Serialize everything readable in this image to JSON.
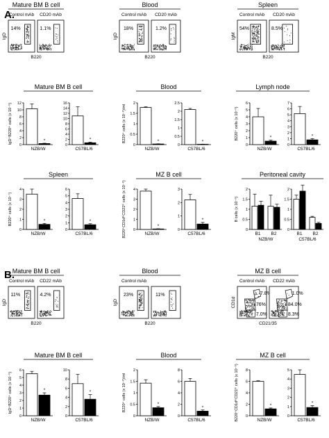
{
  "panel_labels": [
    "A.",
    "B."
  ],
  "colors": {
    "control": "#ffffff",
    "treated": "#000000"
  },
  "flow_A": [
    {
      "title": "Mature BM B cell",
      "ylabel": "IgD",
      "xlabel": "B220",
      "plots": [
        {
          "label": "Control mAb",
          "percent": "14%"
        },
        {
          "label": "CD20 mAb",
          "percent": "1.1%"
        }
      ]
    },
    {
      "title": "Blood",
      "ylabel": "IgD",
      "xlabel": "B220",
      "plots": [
        {
          "label": "Control mAb",
          "percent": "18%"
        },
        {
          "label": "CD20 mAb",
          "percent": "1.2%"
        }
      ]
    },
    {
      "title": "Spleen",
      "ylabel": "IgM",
      "xlabel": "B220",
      "plots": [
        {
          "label": "Control mAb",
          "percent": "54%"
        },
        {
          "label": "CD20 mAb",
          "percent": "8.5%"
        }
      ]
    }
  ],
  "flow_B": [
    {
      "title": "Mature BM B cell",
      "ylabel": "IgD",
      "xlabel": "B220",
      "plots": [
        {
          "label": "Control mAb",
          "percent": "11%"
        },
        {
          "label": "CD22 mAb",
          "percent": "4.2%"
        }
      ]
    },
    {
      "title": "Blood",
      "ylabel": "IgD",
      "xlabel": "B220",
      "plots": [
        {
          "label": "Control mAb",
          "percent": "23%"
        },
        {
          "label": "",
          "percent": "11%"
        }
      ]
    },
    {
      "title": "MZ B cell",
      "ylabel": "CD1d",
      "xlabel": "CD21/35",
      "plots": [
        {
          "label": "Control mAb",
          "gates": [
            "7.8%",
            "76%",
            "7.0%"
          ]
        },
        {
          "label": "CD22 mAb",
          "gates": [
            "1.0%",
            "84.0%",
            "8.3%"
          ]
        }
      ]
    }
  ],
  "chart_data": [
    {
      "type": "bar",
      "title": "Mature BM B cell",
      "ylabel": "IgD⁺B220⁺ cells (x 10⁻⁵)",
      "categories": [
        "NZB/W"
      ],
      "ylim": [
        0,
        12
      ],
      "yticks": [
        0,
        2,
        4,
        6,
        8,
        10,
        12
      ],
      "series": [
        {
          "values": [
            10.3
          ],
          "errors": [
            1.4
          ]
        },
        {
          "values": [
            0.3
          ],
          "errors": [
            0.1
          ]
        }
      ],
      "sig": [
        "*"
      ]
    },
    {
      "type": "bar",
      "title": "",
      "ylabel": "",
      "categories": [
        "C57BL/6"
      ],
      "ylim": [
        0,
        16
      ],
      "yticks": [
        0,
        2,
        4,
        6,
        8,
        10,
        12,
        14,
        16
      ],
      "series": [
        {
          "values": [
            11
          ],
          "errors": [
            3.5
          ]
        },
        {
          "values": [
            0.7
          ],
          "errors": [
            0.2
          ]
        }
      ],
      "sig": [
        "*"
      ]
    },
    {
      "type": "bar",
      "title": "Blood",
      "ylabel": "B220⁺ cells (x 10⁻⁶)/ml",
      "categories": [
        "NZB/W"
      ],
      "ylim": [
        0,
        2.0
      ],
      "yticks": [
        0,
        0.5,
        1.0,
        1.5,
        2.0
      ],
      "series": [
        {
          "values": [
            1.78
          ],
          "errors": [
            0.03
          ]
        },
        {
          "values": [
            0.03
          ],
          "errors": [
            0.01
          ]
        }
      ],
      "sig": [
        "*"
      ]
    },
    {
      "type": "bar",
      "title": "",
      "ylabel": "",
      "categories": [
        "C57BL/6"
      ],
      "ylim": [
        0,
        2.5
      ],
      "yticks": [
        0,
        0.5,
        1.0,
        1.5,
        2.0,
        2.5
      ],
      "series": [
        {
          "values": [
            2.1
          ],
          "errors": [
            0.07
          ]
        },
        {
          "values": [
            0.02
          ],
          "errors": [
            0.01
          ]
        }
      ],
      "sig": [
        "*"
      ]
    },
    {
      "type": "bar",
      "title": "Lymph node",
      "ylabel": "B220⁺ cells (x 10⁻⁶)",
      "categories": [
        "NZB/W"
      ],
      "ylim": [
        0,
        6
      ],
      "yticks": [
        0,
        1,
        2,
        3,
        4,
        5,
        6
      ],
      "series": [
        {
          "values": [
            4.0
          ],
          "errors": [
            1.2
          ]
        },
        {
          "values": [
            0.5
          ],
          "errors": [
            0.15
          ]
        }
      ],
      "sig": [
        "*"
      ]
    },
    {
      "type": "bar",
      "title": "",
      "ylabel": "",
      "categories": [
        "C57BL/6"
      ],
      "ylim": [
        0,
        7
      ],
      "yticks": [
        0,
        1,
        2,
        3,
        4,
        5,
        6,
        7
      ],
      "series": [
        {
          "values": [
            5.2
          ],
          "errors": [
            1.2
          ]
        },
        {
          "values": [
            0.8
          ],
          "errors": [
            0.2
          ]
        }
      ],
      "sig": [
        "*"
      ]
    },
    {
      "type": "bar",
      "title": "Spleen",
      "ylabel": "B220⁺ cells (x 10⁻⁷)",
      "categories": [
        "NZB/W"
      ],
      "ylim": [
        0,
        4
      ],
      "yticks": [
        0,
        1,
        2,
        3,
        4
      ],
      "series": [
        {
          "values": [
            3.5
          ],
          "errors": [
            0.5
          ]
        },
        {
          "values": [
            0.5
          ],
          "errors": [
            0.1
          ]
        }
      ],
      "sig": [
        "*"
      ]
    },
    {
      "type": "bar",
      "title": "",
      "ylabel": "",
      "categories": [
        "C57BL/6"
      ],
      "ylim": [
        0,
        6
      ],
      "yticks": [
        0,
        1,
        2,
        3,
        4,
        5,
        6
      ],
      "series": [
        {
          "values": [
            4.6
          ],
          "errors": [
            0.7
          ]
        },
        {
          "values": [
            0.7
          ],
          "errors": [
            0.15
          ]
        }
      ],
      "sig": [
        "*"
      ]
    },
    {
      "type": "bar",
      "title": "MZ B cell",
      "ylabel": "B220⁺CD1dʰⁱCD21ʰⁱ cells (x 10⁻⁶)",
      "categories": [
        "NZB/W"
      ],
      "ylim": [
        0,
        4
      ],
      "yticks": [
        0,
        1,
        2,
        3,
        4
      ],
      "series": [
        {
          "values": [
            3.8
          ],
          "errors": [
            0.2
          ]
        },
        {
          "values": [
            0.05
          ],
          "errors": [
            0.02
          ]
        }
      ],
      "sig": [
        "*"
      ]
    },
    {
      "type": "bar",
      "title": "",
      "ylabel": "",
      "categories": [
        "C57BL/6"
      ],
      "ylim": [
        0,
        3
      ],
      "yticks": [
        0,
        1,
        2,
        3
      ],
      "series": [
        {
          "values": [
            2.2
          ],
          "errors": [
            0.4
          ]
        },
        {
          "values": [
            0.4
          ],
          "errors": [
            0.12
          ]
        }
      ],
      "sig": [
        "*"
      ]
    },
    {
      "type": "bar",
      "title": "Peritoneal cavity",
      "ylabel": "B cells (x 10⁻⁶)",
      "categories": [
        "B1",
        "B2"
      ],
      "group": "NZB/W",
      "ylim": [
        0,
        2.0
      ],
      "yticks": [
        0,
        0.5,
        1.0,
        1.5,
        2.0
      ],
      "series": [
        {
          "values": [
            1.15,
            1.15
          ],
          "errors": [
            0.6,
            0.55
          ]
        },
        {
          "values": [
            1.2,
            1.1
          ],
          "errors": [
            0.2,
            0.15
          ]
        }
      ],
      "sig": []
    },
    {
      "type": "bar",
      "title": "",
      "ylabel": "",
      "categories": [
        "B1",
        "B2"
      ],
      "group": "C57BL/6",
      "ylim": [
        0,
        2.0
      ],
      "yticks": [
        0,
        0.5,
        1.0,
        1.5,
        2.0
      ],
      "series": [
        {
          "values": [
            1.5,
            0.6
          ],
          "errors": [
            0.2,
            0.05
          ]
        },
        {
          "values": [
            1.9,
            0.3
          ],
          "errors": [
            0.3,
            0.05
          ]
        }
      ],
      "sig": []
    },
    {
      "type": "bar",
      "title": "Mature BM B cell",
      "ylabel": "IgD⁺B220⁺ cells (x 10⁻⁵)",
      "categories": [
        "NZB/W"
      ],
      "ylim": [
        0,
        6
      ],
      "yticks": [
        0,
        1,
        2,
        3,
        4,
        5,
        6
      ],
      "series": [
        {
          "values": [
            5.5
          ],
          "errors": [
            0.3
          ]
        },
        {
          "values": [
            2.7
          ],
          "errors": [
            0.3
          ]
        }
      ],
      "sig": [
        "*"
      ]
    },
    {
      "type": "bar",
      "title": "",
      "ylabel": "",
      "categories": [
        "C57BL/6"
      ],
      "ylim": [
        0,
        10
      ],
      "yticks": [
        0,
        2,
        4,
        6,
        8,
        10
      ],
      "series": [
        {
          "values": [
            7.0
          ],
          "errors": [
            2.0
          ]
        },
        {
          "values": [
            3.6
          ],
          "errors": [
            1.0
          ]
        }
      ],
      "sig": [
        "*"
      ]
    },
    {
      "type": "bar",
      "title": "Blood",
      "ylabel": "B220⁺ cells (x 10⁻⁶)/ml",
      "categories": [
        "NZB/W"
      ],
      "ylim": [
        0,
        2.0
      ],
      "yticks": [
        0,
        0.5,
        1.0,
        1.5,
        2.0
      ],
      "series": [
        {
          "values": [
            1.42
          ],
          "errors": [
            0.15
          ]
        },
        {
          "values": [
            0.35
          ],
          "errors": [
            0.05
          ]
        }
      ],
      "sig": [
        "*"
      ]
    },
    {
      "type": "bar",
      "title": "",
      "ylabel": "",
      "categories": [
        "C57BL/6"
      ],
      "ylim": [
        0,
        8
      ],
      "yticks": [
        0,
        2,
        4,
        6,
        8
      ],
      "series": [
        {
          "values": [
            6.0
          ],
          "errors": [
            0.5
          ]
        },
        {
          "values": [
            0.8
          ],
          "errors": [
            0.2
          ]
        }
      ],
      "sig": [
        "*"
      ]
    },
    {
      "type": "bar",
      "title": "MZ B cell",
      "ylabel": "B220⁺CD1dʰⁱCD21ʰⁱ cells (x 10⁻⁶)",
      "categories": [
        "NZB/W"
      ],
      "ylim": [
        0,
        8
      ],
      "yticks": [
        0,
        2,
        4,
        6,
        8
      ],
      "series": [
        {
          "values": [
            6.0
          ],
          "errors": [
            0.1
          ]
        },
        {
          "values": [
            1.2
          ],
          "errors": [
            0.15
          ]
        }
      ],
      "sig": [
        "*"
      ]
    },
    {
      "type": "bar",
      "title": "",
      "ylabel": "",
      "categories": [
        "C57BL/6"
      ],
      "ylim": [
        0,
        5
      ],
      "yticks": [
        0,
        1,
        2,
        3,
        4,
        5
      ],
      "series": [
        {
          "values": [
            4.5
          ],
          "errors": [
            0.5
          ]
        },
        {
          "values": [
            0.9
          ],
          "errors": [
            0.2
          ]
        }
      ],
      "sig": [
        "*"
      ]
    }
  ]
}
